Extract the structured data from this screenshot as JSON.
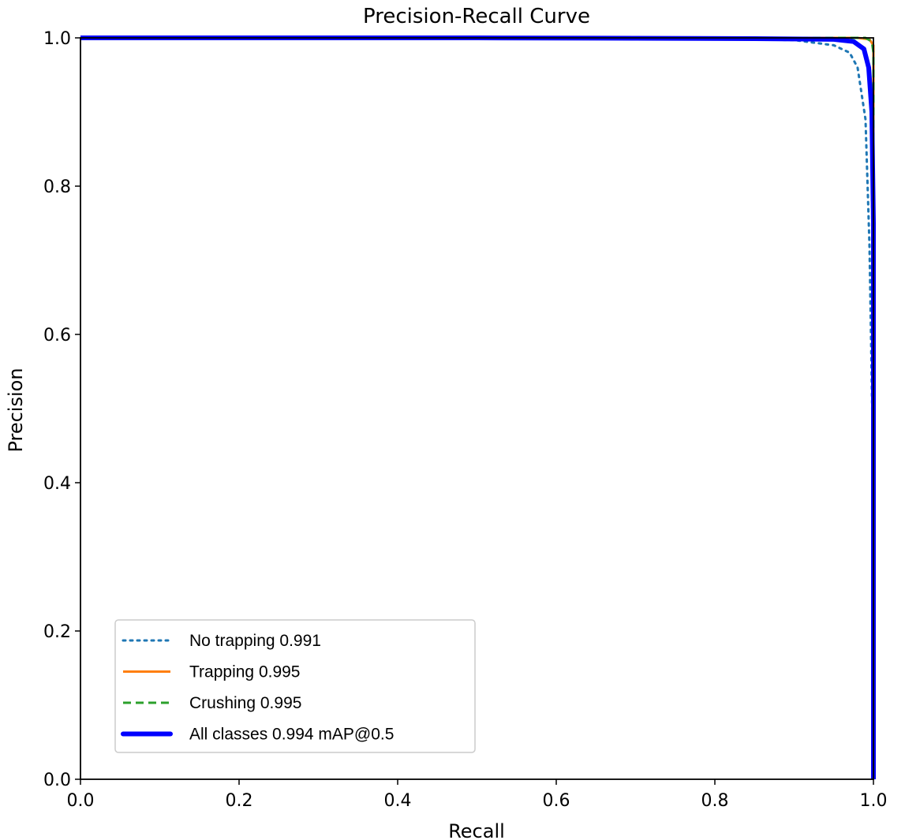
{
  "chart_data": {
    "type": "line",
    "title": "Precision-Recall Curve",
    "xlabel": "Recall",
    "ylabel": "Precision",
    "xlim": [
      0.0,
      1.0
    ],
    "ylim": [
      0.0,
      1.0
    ],
    "xticks": [
      "0.0",
      "0.2",
      "0.4",
      "0.6",
      "0.8",
      "1.0"
    ],
    "yticks": [
      "0.0",
      "0.2",
      "0.4",
      "0.6",
      "0.8",
      "1.0"
    ],
    "grid": false,
    "legend_position": "lower-left",
    "series": [
      {
        "name": "No trapping 0.991",
        "color": "#1f77b4",
        "style": "dotted",
        "x": [
          0.0,
          0.5,
          0.8,
          0.9,
          0.95,
          0.97,
          0.98,
          0.99,
          0.995,
          1.0,
          1.0
        ],
        "y": [
          1.0,
          1.0,
          0.999,
          0.997,
          0.99,
          0.98,
          0.96,
          0.89,
          0.72,
          0.4,
          0.0
        ]
      },
      {
        "name": "Trapping 0.995",
        "color": "#ff7f0e",
        "style": "solid",
        "x": [
          0.0,
          0.5,
          0.9,
          0.98,
          0.995,
          1.0,
          1.0
        ],
        "y": [
          1.0,
          1.0,
          1.0,
          1.0,
          0.998,
          0.99,
          0.0
        ]
      },
      {
        "name": "Crushing 0.995",
        "color": "#2ca02c",
        "style": "dashed",
        "x": [
          0.0,
          0.5,
          0.9,
          0.99,
          0.998,
          1.0,
          1.0
        ],
        "y": [
          1.0,
          1.0,
          1.0,
          1.0,
          0.995,
          0.98,
          0.0
        ]
      },
      {
        "name": "All classes 0.994 mAP@0.5",
        "color": "#0000ff",
        "style": "thick",
        "x": [
          0.0,
          0.5,
          0.85,
          0.95,
          0.975,
          0.988,
          0.994,
          0.998,
          1.0,
          1.0
        ],
        "y": [
          1.0,
          1.0,
          0.999,
          0.998,
          0.995,
          0.985,
          0.96,
          0.9,
          0.75,
          0.0
        ]
      }
    ]
  }
}
